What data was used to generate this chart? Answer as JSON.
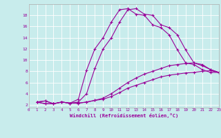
{
  "xlabel": "Windchill (Refroidissement éolien,°C)",
  "bg_color": "#c8ecec",
  "line_color": "#990099",
  "xlim": [
    0,
    23
  ],
  "ylim": [
    1.5,
    20
  ],
  "xticks": [
    0,
    1,
    2,
    3,
    4,
    5,
    6,
    7,
    8,
    9,
    10,
    11,
    12,
    13,
    14,
    15,
    16,
    17,
    18,
    19,
    20,
    21,
    22,
    23
  ],
  "yticks": [
    2,
    4,
    6,
    8,
    10,
    12,
    14,
    16,
    18
  ],
  "series": [
    {
      "x": [
        1,
        2,
        3,
        4,
        5,
        6,
        7,
        8,
        9,
        10,
        11,
        12,
        13,
        14,
        15,
        16,
        17,
        18,
        19,
        20,
        21,
        22,
        23
      ],
      "y": [
        2.5,
        2.7,
        2.2,
        2.5,
        2.3,
        3.0,
        8.2,
        12.0,
        14.0,
        16.8,
        19.0,
        19.2,
        18.2,
        18.0,
        16.3,
        15.8,
        14.5,
        11.8,
        9.5,
        9.2,
        8.3,
        7.8,
        7.8
      ]
    },
    {
      "x": [
        1,
        2,
        3,
        4,
        5,
        6,
        7,
        8,
        9,
        10,
        11,
        12,
        13,
        14,
        15,
        16,
        17,
        18,
        19,
        20,
        21,
        22,
        23
      ],
      "y": [
        2.5,
        2.7,
        2.2,
        2.5,
        2.3,
        2.5,
        4.0,
        8.5,
        12.0,
        14.0,
        16.8,
        19.0,
        19.2,
        18.2,
        18.0,
        16.3,
        15.8,
        14.5,
        11.8,
        9.5,
        9.2,
        8.3,
        7.8
      ]
    },
    {
      "x": [
        1,
        2,
        3,
        4,
        5,
        6,
        7,
        8,
        9,
        10,
        11,
        12,
        13,
        14,
        15,
        16,
        17,
        18,
        19,
        20,
        21,
        22,
        23
      ],
      "y": [
        2.5,
        2.2,
        2.2,
        2.5,
        2.3,
        2.3,
        2.5,
        2.8,
        3.2,
        4.0,
        5.0,
        6.0,
        6.8,
        7.5,
        8.0,
        8.5,
        9.0,
        9.2,
        9.4,
        9.5,
        9.0,
        8.3,
        7.8
      ]
    },
    {
      "x": [
        1,
        2,
        3,
        4,
        5,
        6,
        7,
        8,
        9,
        10,
        11,
        12,
        13,
        14,
        15,
        16,
        17,
        18,
        19,
        20,
        21,
        22,
        23
      ],
      "y": [
        2.5,
        2.2,
        2.2,
        2.5,
        2.3,
        2.3,
        2.5,
        2.8,
        3.0,
        3.5,
        4.2,
        5.0,
        5.5,
        6.0,
        6.5,
        7.0,
        7.3,
        7.5,
        7.7,
        7.8,
        8.0,
        8.1,
        7.8
      ]
    }
  ]
}
